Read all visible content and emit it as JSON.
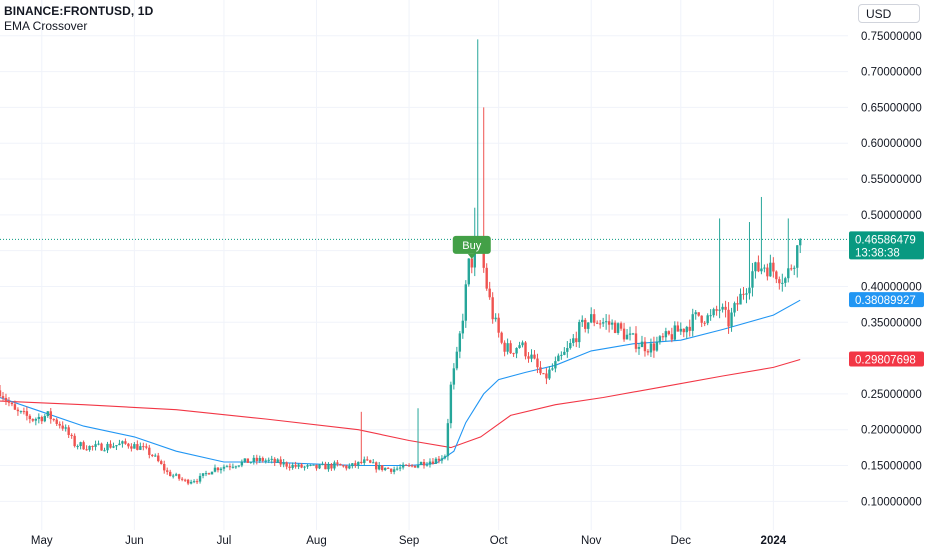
{
  "header": {
    "symbol": "BINANCE:FRONTUSD, 1D",
    "indicator": "EMA Crossover",
    "currency": "USD"
  },
  "colors": {
    "up": "#26a69a",
    "down": "#ef5350",
    "ema_fast": "#2196f3",
    "ema_slow": "#f23645",
    "buy_signal": "#43a047",
    "price_tag": "#089981",
    "grid": "#f0f3fa"
  },
  "chart_data": {
    "type": "candlestick",
    "title": "BINANCE:FRONTUSD, 1D",
    "subtitle": "EMA Crossover",
    "y_axis": {
      "ticks": [
        "0.10000000",
        "0.15000000",
        "0.20000000",
        "0.25000000",
        "0.30000000",
        "0.35000000",
        "0.40000000",
        "0.45000000",
        "0.50000000",
        "0.55000000",
        "0.60000000",
        "0.65000000",
        "0.70000000",
        "0.75000000"
      ],
      "tick_values": [
        0.1,
        0.15,
        0.2,
        0.25,
        0.3,
        0.35,
        0.4,
        0.45,
        0.5,
        0.55,
        0.6,
        0.65,
        0.7,
        0.75
      ],
      "range": [
        0.06,
        0.8
      ]
    },
    "x_axis": {
      "ticks": [
        "May",
        "Jun",
        "Jul",
        "Aug",
        "Sep",
        "Oct",
        "Nov",
        "Dec",
        "2024"
      ],
      "tick_dates": [
        "2023-05-01",
        "2023-06-01",
        "2023-07-01",
        "2023-08-01",
        "2023-09-01",
        "2023-10-01",
        "2023-11-01",
        "2023-12-01",
        "2024-01-01"
      ],
      "range": [
        "2023-04-17",
        "2024-01-26"
      ]
    },
    "grid": true,
    "last_price": "0.46586479",
    "last_price_value": 0.46586479,
    "countdown": "13:38:38",
    "ema_fast_last": "0.38089927",
    "ema_fast_last_value": 0.38089927,
    "ema_slow_last": "0.29807698",
    "ema_slow_last_value": 0.29807698,
    "signals": [
      {
        "label": "Buy",
        "date": "2023-09-22",
        "price": 0.44
      }
    ],
    "price_path": [
      [
        "2023-04-17",
        0.255
      ],
      [
        "2023-04-22",
        0.225
      ],
      [
        "2023-04-28",
        0.215
      ],
      [
        "2023-05-03",
        0.22
      ],
      [
        "2023-05-08",
        0.205
      ],
      [
        "2023-05-12",
        0.18
      ],
      [
        "2023-05-18",
        0.175
      ],
      [
        "2023-05-24",
        0.178
      ],
      [
        "2023-05-30",
        0.18
      ],
      [
        "2023-06-03",
        0.175
      ],
      [
        "2023-06-07",
        0.165
      ],
      [
        "2023-06-12",
        0.14
      ],
      [
        "2023-06-18",
        0.128
      ],
      [
        "2023-06-23",
        0.132
      ],
      [
        "2023-06-27",
        0.145
      ],
      [
        "2023-07-02",
        0.15
      ],
      [
        "2023-07-08",
        0.155
      ],
      [
        "2023-07-14",
        0.158
      ],
      [
        "2023-07-20",
        0.153
      ],
      [
        "2023-07-26",
        0.148
      ],
      [
        "2023-08-01",
        0.147
      ],
      [
        "2023-08-07",
        0.15
      ],
      [
        "2023-08-12",
        0.148
      ],
      [
        "2023-08-17",
        0.155
      ],
      [
        "2023-08-22",
        0.147
      ],
      [
        "2023-08-27",
        0.145
      ],
      [
        "2023-09-01",
        0.148
      ],
      [
        "2023-09-06",
        0.155
      ],
      [
        "2023-09-10",
        0.158
      ],
      [
        "2023-09-13",
        0.165
      ],
      [
        "2023-09-15",
        0.26
      ],
      [
        "2023-09-17",
        0.3
      ],
      [
        "2023-09-19",
        0.36
      ],
      [
        "2023-09-21",
        0.43
      ],
      [
        "2023-09-23",
        0.44
      ],
      [
        "2023-09-25",
        0.45
      ],
      [
        "2023-09-27",
        0.4
      ],
      [
        "2023-09-29",
        0.36
      ],
      [
        "2023-10-02",
        0.32
      ],
      [
        "2023-10-05",
        0.31
      ],
      [
        "2023-10-08",
        0.32
      ],
      [
        "2023-10-12",
        0.3
      ],
      [
        "2023-10-16",
        0.27
      ],
      [
        "2023-10-20",
        0.29
      ],
      [
        "2023-10-24",
        0.31
      ],
      [
        "2023-10-28",
        0.34
      ],
      [
        "2023-11-01",
        0.355
      ],
      [
        "2023-11-05",
        0.35
      ],
      [
        "2023-11-09",
        0.345
      ],
      [
        "2023-11-13",
        0.33
      ],
      [
        "2023-11-17",
        0.32
      ],
      [
        "2023-11-21",
        0.315
      ],
      [
        "2023-11-25",
        0.325
      ],
      [
        "2023-11-29",
        0.335
      ],
      [
        "2023-12-03",
        0.345
      ],
      [
        "2023-12-07",
        0.36
      ],
      [
        "2023-12-11",
        0.355
      ],
      [
        "2023-12-14",
        0.37
      ],
      [
        "2023-12-17",
        0.35
      ],
      [
        "2023-12-21",
        0.385
      ],
      [
        "2023-12-25",
        0.42
      ],
      [
        "2023-12-29",
        0.43
      ],
      [
        "2024-01-02",
        0.42
      ],
      [
        "2024-01-05",
        0.41
      ],
      [
        "2024-01-08",
        0.44
      ],
      [
        "2024-01-10",
        0.466
      ]
    ],
    "spikes": [
      {
        "date": "2023-09-23",
        "high": 0.51
      },
      {
        "date": "2023-09-24",
        "high": 0.745
      },
      {
        "date": "2023-09-26",
        "high": 0.65
      },
      {
        "date": "2023-08-16",
        "high": 0.225
      },
      {
        "date": "2023-09-04",
        "high": 0.23
      },
      {
        "date": "2023-12-14",
        "high": 0.495
      },
      {
        "date": "2023-12-24",
        "high": 0.49
      },
      {
        "date": "2023-12-28",
        "high": 0.525
      },
      {
        "date": "2024-01-06",
        "high": 0.495
      }
    ],
    "ema_fast": [
      [
        "2023-04-17",
        0.245
      ],
      [
        "2023-05-01",
        0.225
      ],
      [
        "2023-05-15",
        0.205
      ],
      [
        "2023-06-01",
        0.19
      ],
      [
        "2023-06-15",
        0.17
      ],
      [
        "2023-07-01",
        0.155
      ],
      [
        "2023-07-15",
        0.155
      ],
      [
        "2023-08-01",
        0.152
      ],
      [
        "2023-08-15",
        0.15
      ],
      [
        "2023-09-01",
        0.15
      ],
      [
        "2023-09-10",
        0.153
      ],
      [
        "2023-09-16",
        0.17
      ],
      [
        "2023-09-20",
        0.21
      ],
      [
        "2023-09-26",
        0.25
      ],
      [
        "2023-10-01",
        0.27
      ],
      [
        "2023-10-10",
        0.28
      ],
      [
        "2023-10-20",
        0.29
      ],
      [
        "2023-11-01",
        0.31
      ],
      [
        "2023-11-15",
        0.32
      ],
      [
        "2023-12-01",
        0.325
      ],
      [
        "2023-12-15",
        0.34
      ],
      [
        "2024-01-01",
        0.36
      ],
      [
        "2024-01-10",
        0.38089927
      ]
    ],
    "ema_slow": [
      [
        "2023-04-17",
        0.24
      ],
      [
        "2023-05-15",
        0.235
      ],
      [
        "2023-06-15",
        0.228
      ],
      [
        "2023-07-15",
        0.215
      ],
      [
        "2023-08-15",
        0.2
      ],
      [
        "2023-09-01",
        0.185
      ],
      [
        "2023-09-15",
        0.175
      ],
      [
        "2023-09-25",
        0.19
      ],
      [
        "2023-10-05",
        0.22
      ],
      [
        "2023-10-20",
        0.235
      ],
      [
        "2023-11-05",
        0.245
      ],
      [
        "2023-11-25",
        0.26
      ],
      [
        "2023-12-15",
        0.275
      ],
      [
        "2024-01-01",
        0.287
      ],
      [
        "2024-01-10",
        0.29807698
      ]
    ]
  }
}
